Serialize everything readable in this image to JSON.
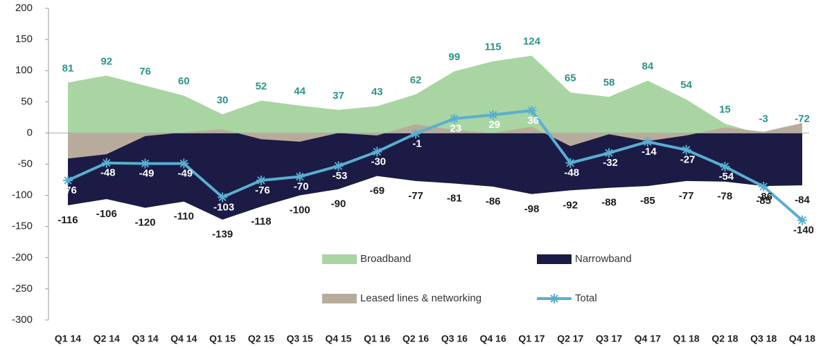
{
  "chart_data": {
    "type": "area-line",
    "categories": [
      "Q1 14",
      "Q2 14",
      "Q3 14",
      "Q4 14",
      "Q1 15",
      "Q2 15",
      "Q3 15",
      "Q4 15",
      "Q1 16",
      "Q2 16",
      "Q3 16",
      "Q4 16",
      "Q1 17",
      "Q2 17",
      "Q3 17",
      "Q4 17",
      "Q1 18",
      "Q2 18",
      "Q3 18",
      "Q4 18"
    ],
    "series": [
      {
        "name": "Broadband",
        "kind": "area",
        "color": "#a9d5a3",
        "label_color": "#2a9488",
        "values": [
          81,
          92,
          76,
          60,
          30,
          52,
          44,
          37,
          43,
          62,
          99,
          115,
          124,
          65,
          58,
          84,
          54,
          15,
          -3,
          -72
        ]
      },
      {
        "name": "Narrowband",
        "kind": "area",
        "color": "#1b1b45",
        "label_color": "#1a1a1a",
        "values": [
          -116,
          -106,
          -120,
          -110,
          -139,
          -118,
          -100,
          -90,
          -69,
          -77,
          -81,
          -86,
          -98,
          -92,
          -88,
          -85,
          -77,
          -78,
          -85,
          -84
        ]
      },
      {
        "name": "Leased lines & networking",
        "kind": "area",
        "color": "#b9ab9b",
        "values": [
          -41,
          -34,
          -5,
          1,
          6,
          -10,
          -14,
          0,
          -4,
          14,
          5,
          0,
          10,
          -21,
          -2,
          -13,
          -4,
          9,
          2,
          16
        ]
      },
      {
        "name": "Total",
        "kind": "line",
        "color": "#5aaed0",
        "values": [
          -76,
          -48,
          -49,
          -49,
          -103,
          -76,
          -70,
          -53,
          -30,
          -1,
          23,
          29,
          36,
          -48,
          -32,
          -14,
          -27,
          -54,
          -86,
          -140
        ]
      }
    ],
    "ylim": [
      -300,
      200
    ],
    "yticks": [
      -300,
      -250,
      -200,
      -150,
      -100,
      -50,
      0,
      50,
      100,
      150,
      200
    ]
  }
}
